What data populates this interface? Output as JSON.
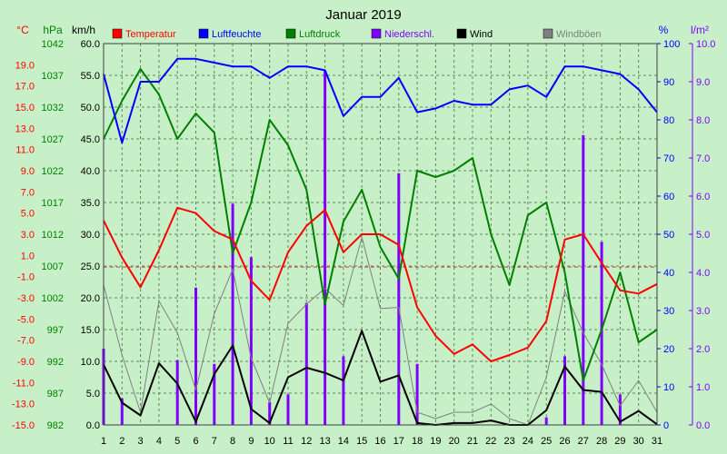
{
  "chart_data": {
    "type": "line",
    "title": "Januar 2019",
    "colors": {
      "background": "#c8f0c8",
      "plot_background": "#c8f0c8",
      "temperature": "#ff0000",
      "humidity": "#0000ff",
      "pressure": "#008000",
      "precipitation": "#8000ff",
      "wind": "#000000",
      "gusts": "#808080",
      "grid": "#5a8a5a",
      "reference_line": "#d04040"
    },
    "axes": {
      "temperature": {
        "unit": "°C",
        "range": [
          -15,
          21
        ],
        "ticks": [
          "19.0",
          "17.0",
          "15.0",
          "13.0",
          "11.0",
          "9.0",
          "7.0",
          "5.0",
          "3.0",
          "1.0",
          "-1.0",
          "-3.0",
          "-5.0",
          "-7.0",
          "-9.0",
          "-11.0",
          "-13.0",
          "-15.0"
        ],
        "color": "#ff0000"
      },
      "pressure": {
        "unit": "hPa",
        "range": [
          982,
          1042
        ],
        "ticks": [
          "1042",
          "1037",
          "1032",
          "1027",
          "1022",
          "1017",
          "1012",
          "1007",
          "1002",
          "997",
          "992",
          "987",
          "982"
        ],
        "color": "#008000"
      },
      "wind": {
        "unit": "km/h",
        "range": [
          0,
          60
        ],
        "ticks": [
          "60.0",
          "55.0",
          "50.0",
          "45.0",
          "40.0",
          "35.0",
          "30.0",
          "25.0",
          "20.0",
          "15.0",
          "10.0",
          "5.0",
          "0.0"
        ],
        "color": "#000000"
      },
      "humidity": {
        "unit": "%",
        "range": [
          0,
          100
        ],
        "ticks": [
          "100",
          "90",
          "80",
          "70",
          "60",
          "50",
          "40",
          "30",
          "20",
          "10",
          "0"
        ],
        "color": "#0000ff"
      },
      "precipitation": {
        "unit": "l/m²",
        "range": [
          0,
          10
        ],
        "ticks": [
          "10.0",
          "9.0",
          "8.0",
          "7.0",
          "6.0",
          "5.0",
          "4.0",
          "3.0",
          "2.0",
          "1.0",
          "0.0"
        ],
        "color": "#8000ff"
      },
      "x": {
        "ticks": [
          "1",
          "2",
          "3",
          "4",
          "5",
          "6",
          "7",
          "8",
          "9",
          "10",
          "11",
          "12",
          "13",
          "14",
          "15",
          "16",
          "17",
          "18",
          "19",
          "20",
          "21",
          "22",
          "23",
          "24",
          "25",
          "26",
          "27",
          "28",
          "29",
          "30",
          "31"
        ]
      }
    },
    "legend": [
      {
        "key": "temperature",
        "label": "Temperatur",
        "color": "#ff0000"
      },
      {
        "key": "humidity",
        "label": "Luftfeuchte",
        "color": "#0000ff"
      },
      {
        "key": "pressure",
        "label": "Luftdruck",
        "color": "#008000"
      },
      {
        "key": "precipitation",
        "label": "Niederschl.",
        "color": "#8000ff"
      },
      {
        "key": "wind",
        "label": "Wind",
        "color": "#000000"
      },
      {
        "key": "gusts",
        "label": "Windböen",
        "color": "#808080"
      }
    ],
    "reference_temperature": -0.1,
    "x": [
      1,
      2,
      3,
      4,
      5,
      6,
      7,
      8,
      9,
      10,
      11,
      12,
      13,
      14,
      15,
      16,
      17,
      18,
      19,
      20,
      21,
      22,
      23,
      24,
      25,
      26,
      27,
      28,
      29,
      30,
      31
    ],
    "series": [
      {
        "key": "temperature",
        "name": "Temperatur",
        "axis": "temperature",
        "values": [
          4.3,
          0.8,
          -2.0,
          1.5,
          5.5,
          5.0,
          3.3,
          2.5,
          -1.4,
          -3.2,
          1.3,
          3.8,
          5.3,
          1.3,
          3.0,
          3.0,
          2.0,
          -3.9,
          -6.6,
          -8.3,
          -7.4,
          -9.0,
          -8.4,
          -7.7,
          -5.2,
          2.5,
          3.0,
          0.3,
          -2.3,
          -2.6,
          -1.7
        ]
      },
      {
        "key": "humidity",
        "name": "Luftfeuchte",
        "axis": "humidity",
        "values": [
          92,
          74,
          90,
          90,
          96,
          96,
          95,
          94,
          94,
          91,
          94,
          94,
          93,
          81,
          86,
          86,
          91,
          82,
          83,
          85,
          84,
          84,
          88,
          89,
          86,
          94,
          94,
          93,
          92,
          88,
          82
        ]
      },
      {
        "key": "pressure",
        "name": "Luftdruck",
        "axis": "pressure",
        "values": [
          1027,
          1033,
          1038,
          1034,
          1027,
          1031,
          1028,
          1009,
          1017,
          1030,
          1026,
          1019,
          1001,
          1014,
          1019,
          1010,
          1005,
          1022,
          1021,
          1022,
          1024,
          1012,
          1004,
          1015,
          1017,
          1006,
          989,
          997,
          1006,
          995,
          997
        ]
      },
      {
        "key": "wind",
        "name": "Wind",
        "axis": "wind",
        "values": [
          9.5,
          3.5,
          1.5,
          9.7,
          6.5,
          0.5,
          8.0,
          12.5,
          2.5,
          0.3,
          7.5,
          9.0,
          8.2,
          7.0,
          14.8,
          6.8,
          7.8,
          0.3,
          0.0,
          0.3,
          0.3,
          0.7,
          0.0,
          0.0,
          2.3,
          9.2,
          5.5,
          5.2,
          0.5,
          2.2,
          0.1
        ]
      },
      {
        "key": "gusts",
        "name": "Windböen",
        "axis": "wind",
        "values": [
          22,
          11,
          2,
          19.5,
          14.5,
          5.5,
          17.5,
          24.5,
          10.5,
          3.5,
          16,
          19,
          21.5,
          18.8,
          29.5,
          18.3,
          18.5,
          2,
          1,
          2,
          2,
          3.3,
          1,
          0,
          7.5,
          21,
          14.5,
          9.5,
          3,
          7,
          2
        ]
      },
      {
        "key": "precipitation",
        "name": "Niederschl.",
        "axis": "precipitation",
        "type": "bar",
        "values": [
          2.0,
          0.7,
          0,
          0,
          1.7,
          3.6,
          1.6,
          5.8,
          4.4,
          0.6,
          0.8,
          3.2,
          9.3,
          1.8,
          0,
          0,
          6.6,
          1.6,
          0,
          0,
          0,
          0,
          0,
          0,
          0.2,
          1.8,
          7.6,
          4.8,
          0.8,
          0,
          0
        ]
      }
    ]
  }
}
